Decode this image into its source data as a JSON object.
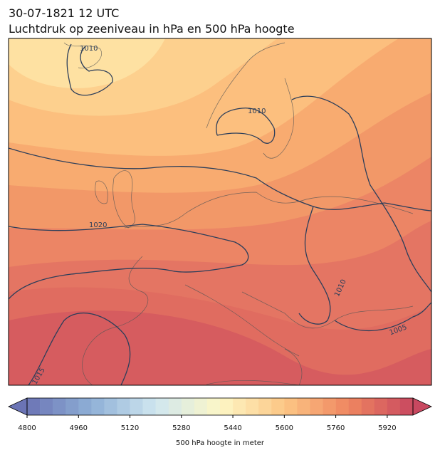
{
  "title": [
    "30-07-1821 12 UTC",
    "Luchtdruk op zeeniveau in hPa en 500 hPa hoogte"
  ],
  "contour_labels": [
    "1010",
    "1010",
    "1020",
    "1010",
    "1005",
    "1015"
  ],
  "colorbar": {
    "label": "500 hPa hoogte in meter",
    "lim": [
      4800,
      6000
    ],
    "step": 40,
    "ticks": [
      4800,
      4960,
      5120,
      5280,
      5440,
      5600,
      5760,
      5920
    ],
    "colors": [
      "#6b74b5",
      "#8fb0d6",
      "#cfe6f0",
      "#fdf7c6",
      "#fcc685",
      "#ef8660",
      "#c84860"
    ]
  }
}
